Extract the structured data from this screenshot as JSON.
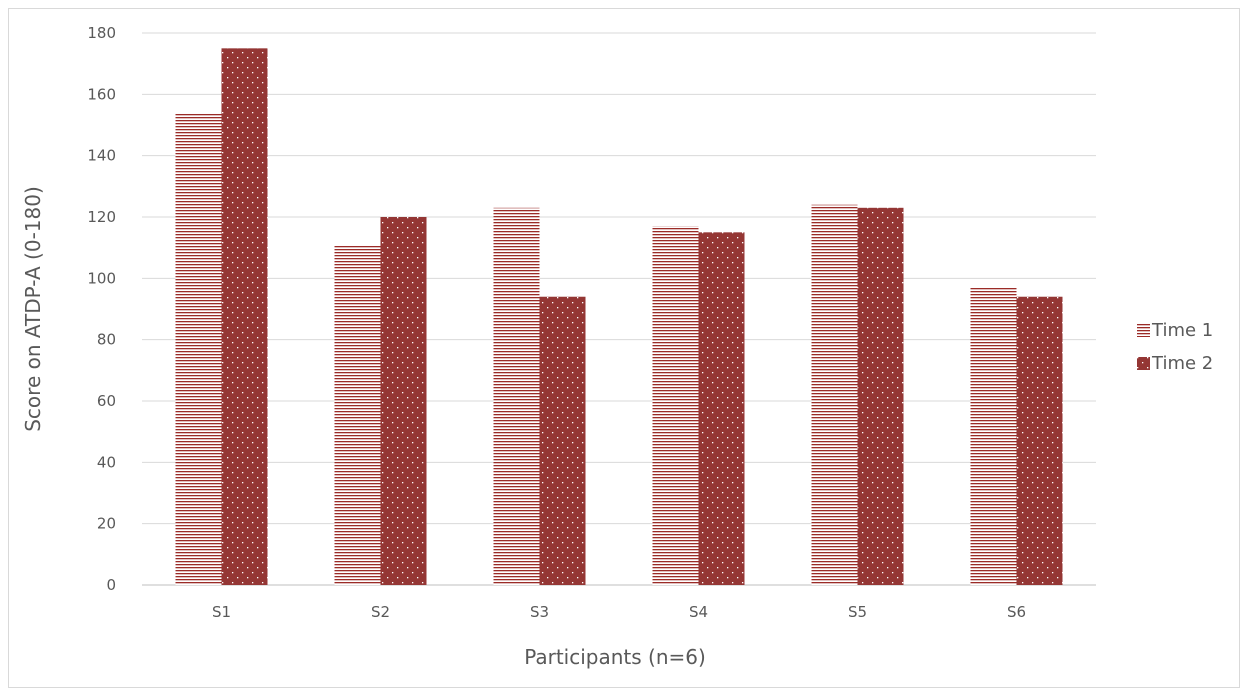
{
  "chart_data": {
    "type": "bar",
    "title": "",
    "xlabel": "Participants (n=6)",
    "ylabel": "Score on ATDP-A (0-180)",
    "categories": [
      "S1",
      "S2",
      "S3",
      "S4",
      "S5",
      "S6"
    ],
    "series": [
      {
        "name": "Time 1",
        "values": [
          154,
          111,
          123,
          117,
          124,
          97
        ],
        "color": "#9b2b27",
        "pattern": "horizontal-lines"
      },
      {
        "name": "Time 2",
        "values": [
          175,
          120,
          94,
          115,
          123,
          94
        ],
        "color": "#943634",
        "pattern": "dots"
      }
    ],
    "ylim": [
      0,
      180
    ],
    "yticks": [
      0,
      20,
      40,
      60,
      80,
      100,
      120,
      140,
      160,
      180
    ],
    "grid": true,
    "legend_position": "right"
  }
}
